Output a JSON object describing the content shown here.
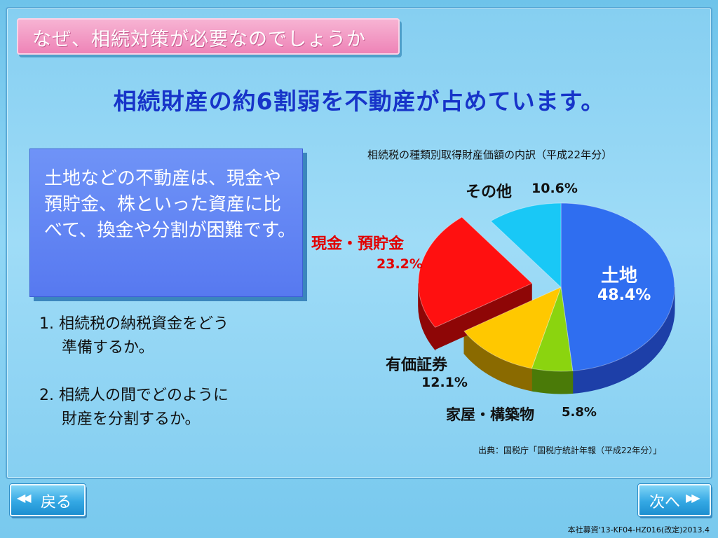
{
  "header": {
    "title": "なぜ、相続対策が必要なのでしょうか",
    "headline": "相続財産の約6割弱を不動産が占めています。"
  },
  "callout": {
    "text": "土地などの不動産は、現金や預貯金、株といった資産に比べて、換金や分割が困難です。"
  },
  "points": [
    {
      "num": "1.",
      "line1": "相続税の納税資金をどう",
      "line2": "準備するか。"
    },
    {
      "num": "2.",
      "line1": "相続人の間でどのように",
      "line2": "財産を分割するか。"
    }
  ],
  "chart_data": {
    "type": "pie",
    "title": "相続税の種類別取得財産価額の内訳（平成22年分）",
    "unit": "%",
    "slices": [
      {
        "name": "土地",
        "value": 48.4,
        "label": "48.4%",
        "color": "#2f6ef0",
        "side": "#1d3fa8"
      },
      {
        "name": "家屋・構築物",
        "value": 5.8,
        "label": "5.8%",
        "color": "#8bd40f",
        "side": "#4a7a08"
      },
      {
        "name": "有価証券",
        "value": 12.1,
        "label": "12.1%",
        "color": "#ffc800",
        "side": "#8a6a00"
      },
      {
        "name": "現金・預貯金",
        "value": 23.2,
        "label": "23.2%",
        "color": "#ff1010",
        "side": "#8e0606",
        "exploded": true
      },
      {
        "name": "その他",
        "value": 10.6,
        "label": "10.6%",
        "color": "#19c8f6",
        "side": "#0d6f8c"
      }
    ],
    "source": "出典：国税庁「国税庁統計年報（平成22年分）」"
  },
  "nav": {
    "back_label": "戻る",
    "next_label": "次へ",
    "back_icon": "double-chevron-left-icon",
    "next_icon": "double-chevron-right-icon"
  },
  "footer": {
    "code": "本社募資'13-KF04-HZ016(改定)2013.4"
  }
}
